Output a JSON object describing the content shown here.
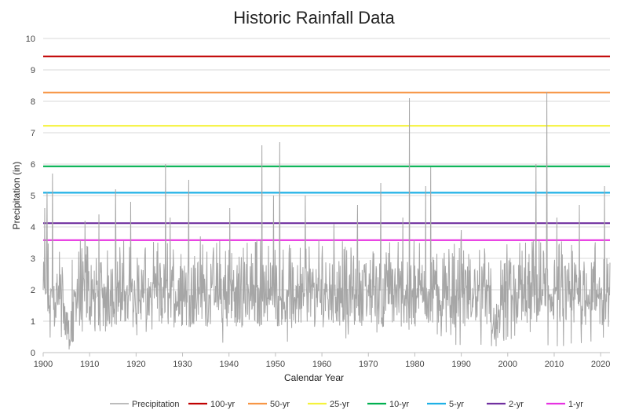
{
  "chart_data": {
    "type": "line",
    "title": "Historic Rainfall Data",
    "xlabel": "Calendar Year",
    "ylabel": "Precipitation (in)",
    "xlim": [
      1900,
      2022
    ],
    "ylim": [
      0,
      10
    ],
    "x_ticks": [
      "1900",
      "1910",
      "1920",
      "1930",
      "1940",
      "1950",
      "1960",
      "1970",
      "1980",
      "1990",
      "2000",
      "2010",
      "2020"
    ],
    "y_ticks": [
      "0",
      "1",
      "2",
      "3",
      "4",
      "5",
      "6",
      "7",
      "8",
      "9",
      "10"
    ],
    "gridlines": "horizontal",
    "legend_position": "bottom",
    "series": [
      {
        "name": "Precipitation",
        "color": "#a6a6a6",
        "peaks": [
          {
            "x": 1900.3,
            "y": 4.6
          },
          {
            "x": 1900.8,
            "y": 5.1
          },
          {
            "x": 1902.0,
            "y": 5.7
          },
          {
            "x": 1904.5,
            "y": 1.5
          },
          {
            "x": 1905.6,
            "y": 0.1
          },
          {
            "x": 1909.0,
            "y": 4.2
          },
          {
            "x": 1912.0,
            "y": 4.4
          },
          {
            "x": 1915.6,
            "y": 5.2
          },
          {
            "x": 1918.8,
            "y": 4.8
          },
          {
            "x": 1926.3,
            "y": 6.0
          },
          {
            "x": 1927.3,
            "y": 4.3
          },
          {
            "x": 1931.3,
            "y": 5.5
          },
          {
            "x": 1933.8,
            "y": 3.7
          },
          {
            "x": 1940.2,
            "y": 4.6
          },
          {
            "x": 1946.0,
            "y": 3.6
          },
          {
            "x": 1947.1,
            "y": 6.6
          },
          {
            "x": 1949.6,
            "y": 5.0
          },
          {
            "x": 1950.9,
            "y": 6.7
          },
          {
            "x": 1956.4,
            "y": 5.0
          },
          {
            "x": 1962.6,
            "y": 4.1
          },
          {
            "x": 1967.7,
            "y": 4.7
          },
          {
            "x": 1972.7,
            "y": 5.4
          },
          {
            "x": 1977.4,
            "y": 4.3
          },
          {
            "x": 1978.8,
            "y": 8.1
          },
          {
            "x": 1982.3,
            "y": 5.3
          },
          {
            "x": 1983.4,
            "y": 5.9
          },
          {
            "x": 1990.0,
            "y": 3.9
          },
          {
            "x": 1997.5,
            "y": 0.2
          },
          {
            "x": 2006.1,
            "y": 6.0
          },
          {
            "x": 2008.4,
            "y": 8.3
          },
          {
            "x": 2010.6,
            "y": 4.3
          },
          {
            "x": 2015.4,
            "y": 4.7
          },
          {
            "x": 2020.8,
            "y": 5.3
          },
          {
            "x": 2021.3,
            "y": 3.0
          }
        ]
      }
    ],
    "reference_lines": [
      {
        "name": "100-yr",
        "value": 9.43,
        "color": "#c00000"
      },
      {
        "name": "50-yr",
        "value": 8.28,
        "color": "#f79646"
      },
      {
        "name": "25-yr",
        "value": 7.22,
        "color": "#f5f23c"
      },
      {
        "name": "10-yr",
        "value": 5.93,
        "color": "#00b050"
      },
      {
        "name": "5-yr",
        "value": 5.09,
        "color": "#1fb1e6"
      },
      {
        "name": "2-yr",
        "value": 4.12,
        "color": "#7030a0"
      },
      {
        "name": "1-yr",
        "value": 3.58,
        "color": "#e733e1"
      }
    ]
  }
}
